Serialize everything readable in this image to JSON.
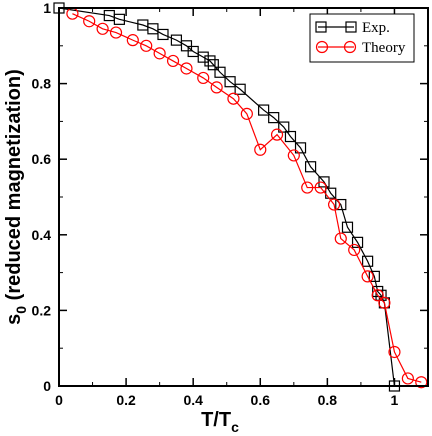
{
  "chart_data": {
    "type": "line",
    "title": "",
    "xlabel": {
      "main": "T/T",
      "sub": "c"
    },
    "ylabel": {
      "pre": "s",
      "sub": "0",
      "post": " (reduced magnetization)"
    },
    "xlim": [
      0,
      1.1
    ],
    "ylim": [
      0,
      1.0
    ],
    "x_ticks": [
      0,
      0.2,
      0.4,
      0.6,
      0.8,
      1
    ],
    "x_tick_labels": [
      "0",
      "0.2",
      "0.4",
      "0.6",
      "0.8",
      "1"
    ],
    "y_ticks": [
      0,
      0.2,
      0.4,
      0.6,
      0.8,
      1
    ],
    "y_tick_labels": [
      "0",
      "0.2",
      "0.4",
      "0.6",
      "0.8",
      "1"
    ],
    "grid": false,
    "legend_position": "top-right",
    "series": [
      {
        "name": "Exp.",
        "color": "#000000",
        "marker": "square",
        "x": [
          0.0,
          0.15,
          0.18,
          0.25,
          0.28,
          0.31,
          0.35,
          0.38,
          0.4,
          0.43,
          0.45,
          0.46,
          0.48,
          0.51,
          0.54,
          0.61,
          0.64,
          0.67,
          0.69,
          0.72,
          0.75,
          0.79,
          0.81,
          0.84,
          0.86,
          0.89,
          0.92,
          0.94,
          0.95,
          0.96,
          0.97,
          1.0
        ],
        "y": [
          1.0,
          0.98,
          0.97,
          0.955,
          0.945,
          0.93,
          0.915,
          0.9,
          0.885,
          0.87,
          0.86,
          0.85,
          0.83,
          0.805,
          0.785,
          0.73,
          0.71,
          0.685,
          0.66,
          0.63,
          0.58,
          0.54,
          0.51,
          0.48,
          0.42,
          0.38,
          0.33,
          0.29,
          0.25,
          0.24,
          0.22,
          0.0
        ]
      },
      {
        "name": "Theory",
        "color": "#ff0000",
        "marker": "circle",
        "x": [
          0.04,
          0.09,
          0.13,
          0.17,
          0.22,
          0.26,
          0.3,
          0.34,
          0.38,
          0.43,
          0.47,
          0.52,
          0.56,
          0.6,
          0.65,
          0.7,
          0.74,
          0.78,
          0.82,
          0.84,
          0.88,
          0.92,
          0.95,
          0.97,
          1.0,
          1.04,
          1.08
        ],
        "y": [
          0.985,
          0.965,
          0.945,
          0.935,
          0.915,
          0.9,
          0.88,
          0.86,
          0.84,
          0.815,
          0.79,
          0.76,
          0.72,
          0.625,
          0.665,
          0.61,
          0.525,
          0.525,
          0.48,
          0.39,
          0.36,
          0.29,
          0.24,
          0.22,
          0.09,
          0.02,
          0.01
        ]
      }
    ]
  }
}
